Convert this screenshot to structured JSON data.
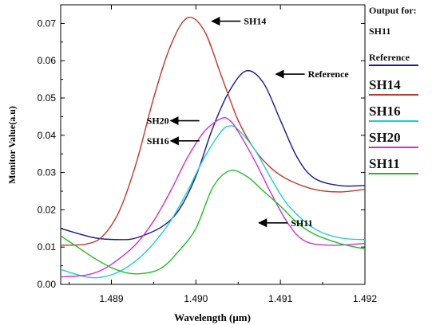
{
  "chart_data": {
    "type": "line",
    "xlabel": "Wavelength (μm)",
    "ylabel": "Monitor Value(a.u)",
    "xlim": [
      1.4884,
      1.492
    ],
    "ylim": [
      0,
      0.075
    ],
    "xticks": [
      "1.489",
      "1.490",
      "1.491",
      "1.492"
    ],
    "yticks": [
      "0.00",
      "0.01",
      "0.02",
      "0.03",
      "0.04",
      "0.05",
      "0.06",
      "0.07"
    ],
    "legend_position": "right",
    "legend_title": "Output for:",
    "legend_subtitle": "SH11",
    "series": [
      {
        "name": "Reference",
        "color": "#1a1a8c",
        "x": [
          1.4884,
          1.4888,
          1.4891,
          1.4893,
          1.4896,
          1.4898,
          1.49,
          1.4902,
          1.4904,
          1.4906,
          1.4908,
          1.491,
          1.4912,
          1.4914,
          1.4917,
          1.492
        ],
        "y": [
          0.015,
          0.0125,
          0.012,
          0.0125,
          0.0155,
          0.02,
          0.029,
          0.042,
          0.052,
          0.0573,
          0.054,
          0.044,
          0.034,
          0.0285,
          0.0265,
          0.0265
        ]
      },
      {
        "name": "SH14",
        "color": "#c0392b",
        "x": [
          1.4884,
          1.4887,
          1.4889,
          1.4891,
          1.4893,
          1.4895,
          1.4897,
          1.4899,
          1.4901,
          1.4903,
          1.4905,
          1.4907,
          1.4909,
          1.4911,
          1.4914,
          1.4917,
          1.492
        ],
        "y": [
          0.0105,
          0.0108,
          0.013,
          0.02,
          0.033,
          0.05,
          0.064,
          0.0715,
          0.068,
          0.056,
          0.044,
          0.036,
          0.031,
          0.028,
          0.0255,
          0.0248,
          0.0255
        ]
      },
      {
        "name": "SH16",
        "color": "#22cccc",
        "x": [
          1.4884,
          1.4887,
          1.4889,
          1.4891,
          1.4893,
          1.4895,
          1.4897,
          1.4899,
          1.4901,
          1.4903,
          1.4904,
          1.4905,
          1.4907,
          1.4909,
          1.4911,
          1.4914,
          1.4917,
          1.492
        ],
        "y": [
          0.004,
          0.002,
          0.002,
          0.0035,
          0.0065,
          0.011,
          0.017,
          0.025,
          0.034,
          0.041,
          0.0425,
          0.0415,
          0.036,
          0.028,
          0.021,
          0.015,
          0.0125,
          0.012
        ]
      },
      {
        "name": "SH20",
        "color": "#cc33cc",
        "x": [
          1.4884,
          1.4887,
          1.4889,
          1.4891,
          1.4893,
          1.4895,
          1.4897,
          1.4899,
          1.4901,
          1.4903,
          1.4904,
          1.4905,
          1.4907,
          1.4909,
          1.4911,
          1.4913,
          1.4916,
          1.492
        ],
        "y": [
          0.002,
          0.0025,
          0.004,
          0.007,
          0.011,
          0.017,
          0.025,
          0.034,
          0.041,
          0.0445,
          0.044,
          0.041,
          0.033,
          0.024,
          0.016,
          0.0115,
          0.0105,
          0.011
        ]
      },
      {
        "name": "SH11",
        "color": "#22bb22",
        "x": [
          1.4884,
          1.4886,
          1.4888,
          1.489,
          1.4892,
          1.4894,
          1.4896,
          1.4898,
          1.49,
          1.4902,
          1.4904,
          1.4906,
          1.4908,
          1.491,
          1.4912,
          1.4914,
          1.4917,
          1.492
        ],
        "y": [
          0.013,
          0.01,
          0.007,
          0.0045,
          0.003,
          0.003,
          0.0045,
          0.009,
          0.015,
          0.026,
          0.0305,
          0.029,
          0.025,
          0.021,
          0.0165,
          0.0135,
          0.011,
          0.0095
        ]
      }
    ],
    "annotations": [
      {
        "text": "SH14",
        "series": "SH14",
        "arrow": "left",
        "x": 1.49,
        "y": 0.0706,
        "dx": 20
      },
      {
        "text": "Reference",
        "series": "Reference",
        "arrow": "left",
        "x": 1.49057,
        "y": 0.0564,
        "dx": 40
      },
      {
        "text": "SH20",
        "series": "SH20",
        "arrow": "right",
        "x": 1.4904,
        "y": 0.0439,
        "dx": -38
      },
      {
        "text": "SH16",
        "series": "SH16",
        "arrow": "right",
        "x": 1.49025,
        "y": 0.0385,
        "dx": -22
      },
      {
        "text": "SH11",
        "series": "SH11",
        "arrow": "left",
        "x": 1.49033,
        "y": 0.0165,
        "dx": 44
      }
    ]
  }
}
